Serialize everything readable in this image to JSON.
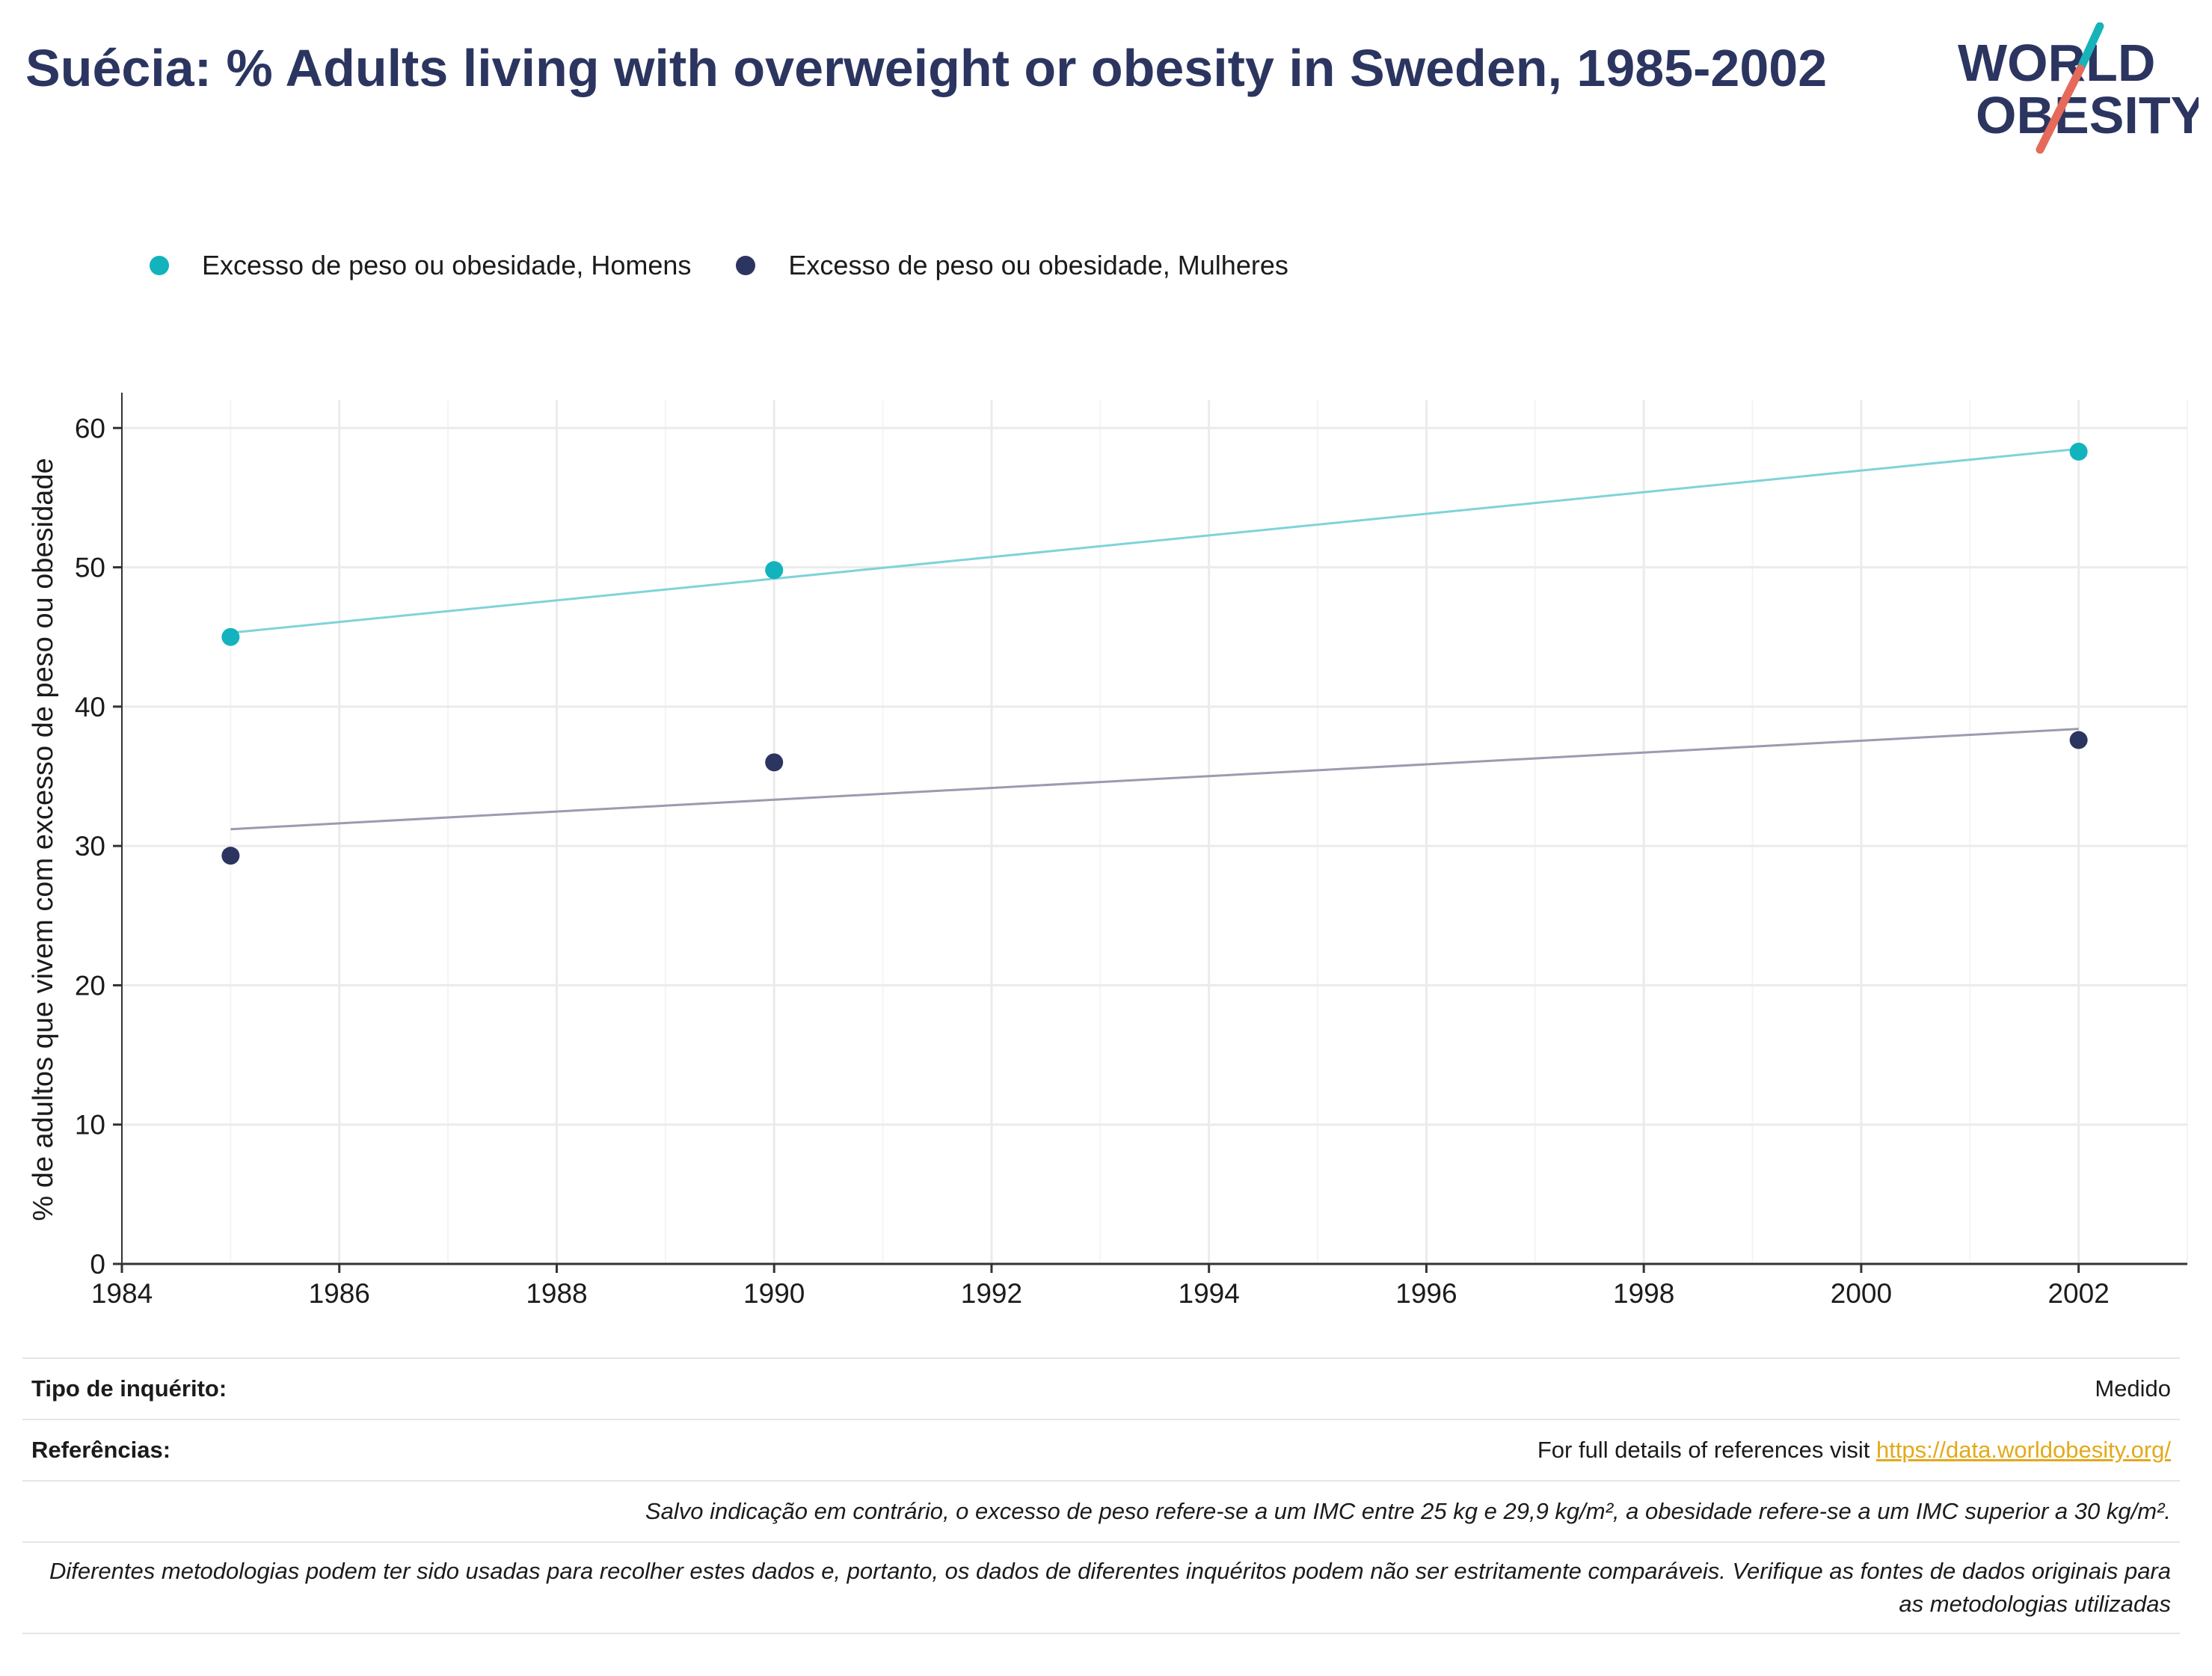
{
  "title": "Suécia: % Adults living with overweight or obesity in Sweden, 1985-2002",
  "logo": {
    "line1": "WORLD",
    "line2": "OBESITY",
    "colors": {
      "text": "#2b3560",
      "slash_teal": "#17b3b9",
      "slash_red": "#e56a5a"
    }
  },
  "legend": [
    {
      "label": "Excesso de peso ou obesidade, Homens",
      "color": "#12b3bc"
    },
    {
      "label": "Excesso de peso ou obesidade, Mulheres",
      "color": "#2b3560"
    }
  ],
  "chart_data": {
    "type": "scatter",
    "x_label": "",
    "y_label": "% de adultos que vivem com excesso de peso ou obesidade",
    "xlim": [
      1984,
      2003
    ],
    "ylim": [
      0,
      62
    ],
    "x_ticks": [
      1984,
      1986,
      1988,
      1990,
      1992,
      1994,
      1996,
      1998,
      2000,
      2002
    ],
    "y_ticks": [
      0,
      10,
      20,
      30,
      40,
      50,
      60
    ],
    "grid": true,
    "legend_position": "top-left",
    "series": [
      {
        "name": "Excesso de peso ou obesidade, Homens",
        "color": "#12b3bc",
        "trend_color": "#7fd3d8",
        "points": [
          {
            "x": 1985,
            "y": 45.0
          },
          {
            "x": 1990,
            "y": 49.8
          },
          {
            "x": 2002,
            "y": 58.3
          }
        ],
        "trend": [
          {
            "x": 1985,
            "y": 45.3
          },
          {
            "x": 2002,
            "y": 58.5
          }
        ]
      },
      {
        "name": "Excesso de peso ou obesidade, Mulheres",
        "color": "#2b3560",
        "trend_color": "#9b9bb0",
        "points": [
          {
            "x": 1985,
            "y": 29.3
          },
          {
            "x": 1990,
            "y": 36.0
          },
          {
            "x": 2002,
            "y": 37.6
          }
        ],
        "trend": [
          {
            "x": 1985,
            "y": 31.2
          },
          {
            "x": 2002,
            "y": 38.4
          }
        ]
      }
    ]
  },
  "info": {
    "survey_type_label": "Tipo de inquérito:",
    "survey_type_value": "Medido",
    "references_label": "Referências:",
    "references_text": "For full details of references visit ",
    "references_link": "https://data.worldobesity.org/",
    "note_1": "Salvo indicação em contrário, o excesso de peso refere-se a um IMC entre 25 kg e 29,9 kg/m², a obesidade refere-se a um IMC superior a 30 kg/m².",
    "note_2": "Diferentes metodologias podem ter sido usadas para recolher estes dados e, portanto, os dados de diferentes inquéritos podem não ser estritamente comparáveis. Verifique as fontes de dados originais para as metodologias utilizadas"
  }
}
